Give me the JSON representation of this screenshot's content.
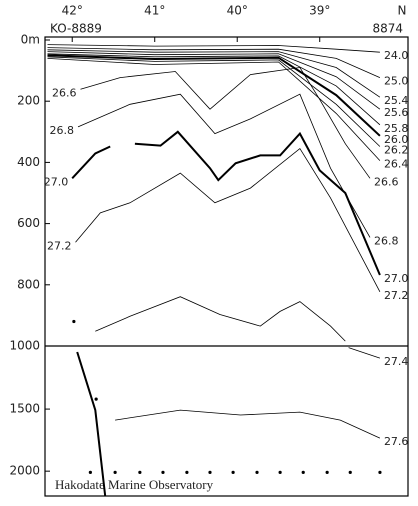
{
  "chart_data": [
    {
      "type": "contour",
      "x_label": "N",
      "station_labels": [
        "KO-8889",
        "8874"
      ],
      "xlim": [
        42.33,
        37.93
      ],
      "xticks": [
        {
          "value": 42,
          "label": "42°"
        },
        {
          "value": 41,
          "label": "41°"
        },
        {
          "value": 40,
          "label": "40°"
        },
        {
          "value": 39,
          "label": "39°"
        }
      ],
      "ylim": [
        0,
        1000
      ],
      "yticks": [
        {
          "value": 0,
          "label": "0m"
        },
        200,
        400,
        600,
        800,
        1000
      ],
      "contours": [
        {
          "label": "24.0",
          "label_at": [
            "end"
          ],
          "x": [
            42.3,
            41.0,
            39.5,
            38.8,
            38.27
          ],
          "y": [
            15,
            20,
            18,
            30,
            40
          ]
        },
        {
          "label": "25.0",
          "label_at": [
            "end"
          ],
          "x": [
            42.3,
            41.0,
            39.5,
            38.8,
            38.27
          ],
          "y": [
            25,
            32,
            30,
            60,
            123
          ]
        },
        {
          "label": "25.4",
          "label_at": [
            "end"
          ],
          "x": [
            42.3,
            41.0,
            39.5,
            38.8,
            38.27
          ],
          "y": [
            32,
            40,
            38,
            90,
            187
          ]
        },
        {
          "label": "25.6",
          "label_at": [
            "end"
          ],
          "x": [
            42.3,
            41.0,
            39.5,
            38.8,
            38.27
          ],
          "y": [
            38,
            48,
            45,
            120,
            226
          ]
        },
        {
          "label": "25.8",
          "label_at": [
            "end"
          ],
          "x": [
            42.3,
            41.0,
            39.5,
            38.8,
            38.27
          ],
          "y": [
            45,
            55,
            52,
            150,
            277
          ]
        },
        {
          "label": "26.0",
          "label_at": [
            "end"
          ],
          "bold": true,
          "x": [
            42.3,
            41.0,
            39.5,
            38.8,
            38.27
          ],
          "y": [
            50,
            62,
            58,
            180,
            313
          ]
        },
        {
          "label": "26.2",
          "label_at": [
            "end"
          ],
          "x": [
            42.3,
            41.0,
            39.5,
            38.8,
            38.27
          ],
          "y": [
            55,
            70,
            65,
            210,
            348
          ]
        },
        {
          "label": "26.4",
          "label_at": [
            "end"
          ],
          "x": [
            42.3,
            41.0,
            39.5,
            38.8,
            38.27
          ],
          "y": [
            60,
            80,
            72,
            240,
            394
          ]
        },
        {
          "label": "26.6",
          "label_at": [
            "start",
            "end"
          ],
          "x": [
            41.9,
            41.42,
            40.75,
            40.33,
            39.84,
            39.24,
            39.0,
            38.69,
            38.39
          ],
          "y": [
            161,
            123,
            103,
            226,
            113,
            90,
            194,
            339,
            452
          ]
        },
        {
          "label": "26.8",
          "label_at": [
            "start",
            "end"
          ],
          "x": [
            41.93,
            41.3,
            40.69,
            40.27,
            39.84,
            39.24,
            38.87,
            38.39
          ],
          "y": [
            284,
            210,
            177,
            306,
            258,
            177,
            419,
            645
          ]
        },
        {
          "label": "27.0",
          "label_at": [
            "start",
            "end"
          ],
          "bold": true,
          "x": [
            42.0,
            41.72,
            41.54,
            null,
            41.24,
            40.93,
            40.72,
            40.33,
            40.23,
            40.02,
            39.72,
            39.48,
            39.24,
            39.0,
            38.69,
            38.27
          ],
          "y": [
            452,
            371,
            348,
            null,
            339,
            345,
            300,
            419,
            458,
            403,
            377,
            377,
            306,
            426,
            500,
            768
          ]
        },
        {
          "label": "27.2",
          "label_at": [
            "start",
            "end"
          ],
          "x": [
            41.96,
            41.66,
            41.3,
            40.69,
            40.27,
            39.84,
            39.24,
            38.87,
            38.27
          ],
          "y": [
            661,
            565,
            532,
            435,
            532,
            484,
            355,
            516,
            823
          ]
        },
        {
          "x": [
            41.72,
            41.3,
            40.69,
            40.21,
            39.72,
            39.48,
            39.24,
            38.87,
            38.69
          ],
          "y": [
            952,
            903,
            839,
            897,
            935,
            887,
            855,
            935,
            984
          ]
        }
      ],
      "points": {
        "x": [
          41.98
        ],
        "y": [
          920
        ]
      }
    },
    {
      "type": "contour",
      "annotation": "Hakodate Marine Observatory",
      "xlim": [
        42.33,
        37.93
      ],
      "ylim": [
        1000,
        2200
      ],
      "yticks": [
        1500,
        2000
      ],
      "contours": [
        {
          "label": "27.4",
          "label_at": [
            "end"
          ],
          "x": [
            38.65,
            38.27
          ],
          "y": [
            1005,
            1089
          ]
        },
        {
          "label": "27.6",
          "label_at": [
            "end"
          ],
          "x": [
            41.48,
            40.69,
            39.96,
            39.24,
            38.75,
            38.27
          ],
          "y": [
            1589,
            1508,
            1548,
            1524,
            1589,
            1734
          ]
        },
        {
          "bold": true,
          "x": [
            41.94,
            41.72,
            41.6
          ],
          "y": [
            1040,
            1508,
            2200
          ]
        }
      ],
      "points": {
        "x": [
          41.71,
          41.78,
          41.48,
          41.18,
          40.9,
          40.61,
          40.33,
          40.05,
          39.76,
          39.48,
          39.2,
          38.91,
          38.63,
          38.27
        ],
        "y": [
          1420,
          2010,
          2010,
          2010,
          2010,
          2010,
          2010,
          2010,
          2010,
          2010,
          2010,
          2010,
          2010,
          2010
        ]
      }
    }
  ]
}
